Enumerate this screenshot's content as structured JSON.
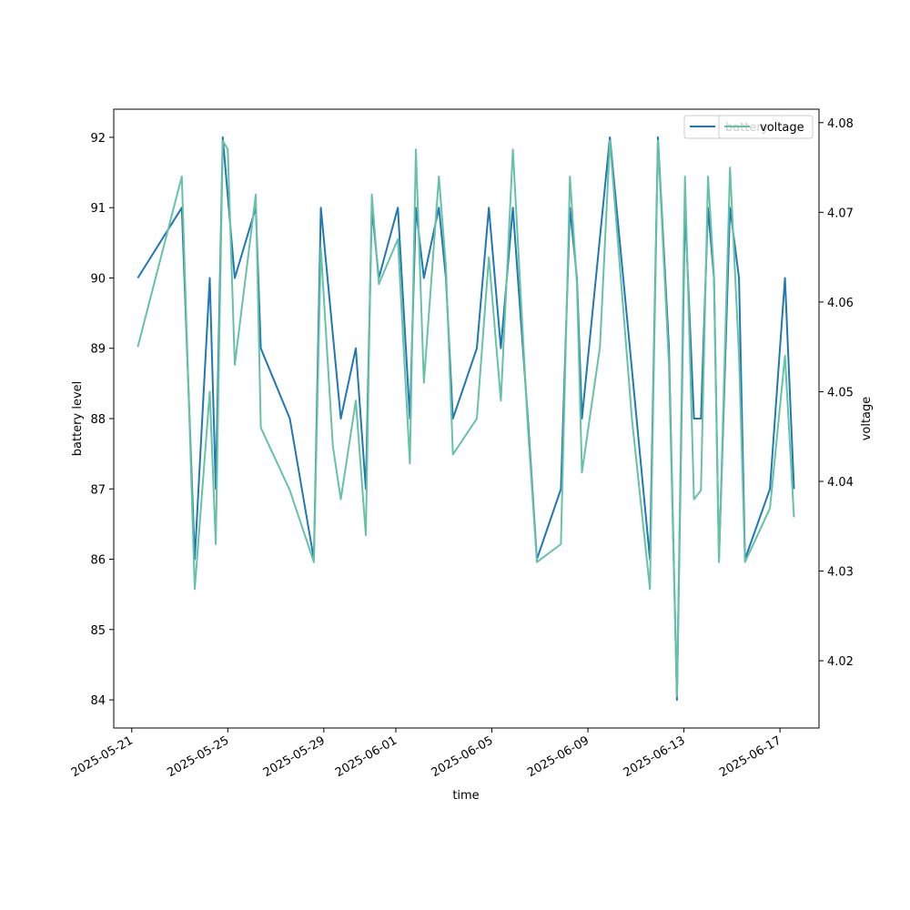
{
  "chart_data": {
    "type": "line",
    "x_type": "date",
    "xlabel": "time",
    "ylabel_left": "battery level",
    "ylabel_right": "voltage",
    "xlim": [
      "2025-05-20T06:00",
      "2025-06-18T15:00"
    ],
    "ylim_left": [
      83.6,
      92.4
    ],
    "ylim_right": [
      4.0125,
      4.0815
    ],
    "x_ticks": [
      "2025-05-21",
      "2025-05-25",
      "2025-05-29",
      "2025-06-01",
      "2025-06-05",
      "2025-06-09",
      "2025-06-13",
      "2025-06-17"
    ],
    "y_ticks_left": [
      84,
      85,
      86,
      87,
      88,
      89,
      90,
      91,
      92
    ],
    "y_ticks_right": [
      4.02,
      4.03,
      4.04,
      4.05,
      4.06,
      4.07,
      4.08
    ],
    "y_tick_labels_right": [
      "4.02",
      "4.03",
      "4.04",
      "4.05",
      "4.06",
      "4.07",
      "4.08"
    ],
    "grid": false,
    "legend_placement": "top-right",
    "colors": {
      "battery": "#1f77b4",
      "voltage": "#66c2a5"
    },
    "series": [
      {
        "name": "battery",
        "axis": "left",
        "points": [
          [
            "2025-05-21T06:00",
            90
          ],
          [
            "2025-05-23T02:00",
            91
          ],
          [
            "2025-05-23T15:00",
            86
          ],
          [
            "2025-05-24T06:00",
            90
          ],
          [
            "2025-05-24T12:00",
            87
          ],
          [
            "2025-05-24T19:00",
            92
          ],
          [
            "2025-05-25T07:00",
            90
          ],
          [
            "2025-05-26T04:00",
            91
          ],
          [
            "2025-05-26T09:00",
            89
          ],
          [
            "2025-05-27T14:00",
            88
          ],
          [
            "2025-05-28T14:00",
            86
          ],
          [
            "2025-05-28T21:00",
            91
          ],
          [
            "2025-05-29T17:00",
            88
          ],
          [
            "2025-05-30T08:00",
            89
          ],
          [
            "2025-05-30T18:00",
            87
          ],
          [
            "2025-05-31T00:00",
            91
          ],
          [
            "2025-05-31T07:00",
            90
          ],
          [
            "2025-06-01T02:00",
            91
          ],
          [
            "2025-06-01T14:00",
            88
          ],
          [
            "2025-06-01T20:00",
            91
          ],
          [
            "2025-06-02T04:00",
            90
          ],
          [
            "2025-06-02T19:00",
            91
          ],
          [
            "2025-06-03T02:00",
            90
          ],
          [
            "2025-06-03T09:00",
            88
          ],
          [
            "2025-06-04T09:00",
            89
          ],
          [
            "2025-06-04T21:00",
            91
          ],
          [
            "2025-06-05T09:00",
            89
          ],
          [
            "2025-06-05T21:00",
            91
          ],
          [
            "2025-06-06T12:00",
            88
          ],
          [
            "2025-06-06T21:00",
            86
          ],
          [
            "2025-06-07T21:00",
            87
          ],
          [
            "2025-06-08T06:00",
            91
          ],
          [
            "2025-06-08T13:00",
            90
          ],
          [
            "2025-06-08T18:00",
            88
          ],
          [
            "2025-06-09T22:00",
            92
          ],
          [
            "2025-06-11T14:00",
            86
          ],
          [
            "2025-06-11T22:00",
            92
          ],
          [
            "2025-06-12T09:00",
            89
          ],
          [
            "2025-06-12T17:00",
            84
          ],
          [
            "2025-06-13T01:00",
            91
          ],
          [
            "2025-06-13T10:00",
            88
          ],
          [
            "2025-06-13T17:00",
            88
          ],
          [
            "2025-06-14T00:00",
            91
          ],
          [
            "2025-06-14T06:00",
            90
          ],
          [
            "2025-06-14T11:00",
            86
          ],
          [
            "2025-06-14T22:00",
            91
          ],
          [
            "2025-06-15T07:00",
            90
          ],
          [
            "2025-06-15T13:00",
            86
          ],
          [
            "2025-06-16T14:00",
            87
          ],
          [
            "2025-06-17T05:00",
            90
          ],
          [
            "2025-06-17T14:00",
            87
          ]
        ]
      },
      {
        "name": "voltage",
        "axis": "right",
        "points": [
          [
            "2025-05-21T06:00",
            4.055
          ],
          [
            "2025-05-23T02:00",
            4.074
          ],
          [
            "2025-05-23T15:00",
            4.028
          ],
          [
            "2025-05-24T06:00",
            4.05
          ],
          [
            "2025-05-24T12:00",
            4.033
          ],
          [
            "2025-05-24T19:00",
            4.078
          ],
          [
            "2025-05-25T00:00",
            4.077
          ],
          [
            "2025-05-25T07:00",
            4.053
          ],
          [
            "2025-05-26T04:00",
            4.072
          ],
          [
            "2025-05-26T09:00",
            4.046
          ],
          [
            "2025-05-27T14:00",
            4.039
          ],
          [
            "2025-05-28T14:00",
            4.031
          ],
          [
            "2025-05-28T21:00",
            4.066
          ],
          [
            "2025-05-29T09:00",
            4.044
          ],
          [
            "2025-05-29T17:00",
            4.038
          ],
          [
            "2025-05-30T08:00",
            4.049
          ],
          [
            "2025-05-30T18:00",
            4.034
          ],
          [
            "2025-05-31T00:00",
            4.072
          ],
          [
            "2025-05-31T07:00",
            4.062
          ],
          [
            "2025-06-01T02:00",
            4.067
          ],
          [
            "2025-06-01T14:00",
            4.042
          ],
          [
            "2025-06-01T20:00",
            4.077
          ],
          [
            "2025-06-02T04:00",
            4.051
          ],
          [
            "2025-06-02T19:00",
            4.074
          ],
          [
            "2025-06-03T02:00",
            4.064
          ],
          [
            "2025-06-03T09:00",
            4.043
          ],
          [
            "2025-06-04T09:00",
            4.047
          ],
          [
            "2025-06-04T21:00",
            4.065
          ],
          [
            "2025-06-05T09:00",
            4.049
          ],
          [
            "2025-06-05T21:00",
            4.077
          ],
          [
            "2025-06-06T12:00",
            4.046
          ],
          [
            "2025-06-06T21:00",
            4.031
          ],
          [
            "2025-06-07T21:00",
            4.033
          ],
          [
            "2025-06-08T06:00",
            4.074
          ],
          [
            "2025-06-08T13:00",
            4.062
          ],
          [
            "2025-06-08T18:00",
            4.041
          ],
          [
            "2025-06-09T12:00",
            4.055
          ],
          [
            "2025-06-09T22:00",
            4.078
          ],
          [
            "2025-06-10T20:00",
            4.047
          ],
          [
            "2025-06-11T14:00",
            4.028
          ],
          [
            "2025-06-11T22:00",
            4.078
          ],
          [
            "2025-06-12T09:00",
            4.053
          ],
          [
            "2025-06-12T17:00",
            4.016
          ],
          [
            "2025-06-13T01:00",
            4.074
          ],
          [
            "2025-06-13T10:00",
            4.038
          ],
          [
            "2025-06-13T17:00",
            4.039
          ],
          [
            "2025-06-14T00:00",
            4.074
          ],
          [
            "2025-06-14T06:00",
            4.063
          ],
          [
            "2025-06-14T11:00",
            4.031
          ],
          [
            "2025-06-14T22:00",
            4.075
          ],
          [
            "2025-06-15T07:00",
            4.054
          ],
          [
            "2025-06-15T13:00",
            4.031
          ],
          [
            "2025-06-16T14:00",
            4.037
          ],
          [
            "2025-06-17T05:00",
            4.054
          ],
          [
            "2025-06-17T14:00",
            4.036
          ]
        ]
      }
    ]
  }
}
